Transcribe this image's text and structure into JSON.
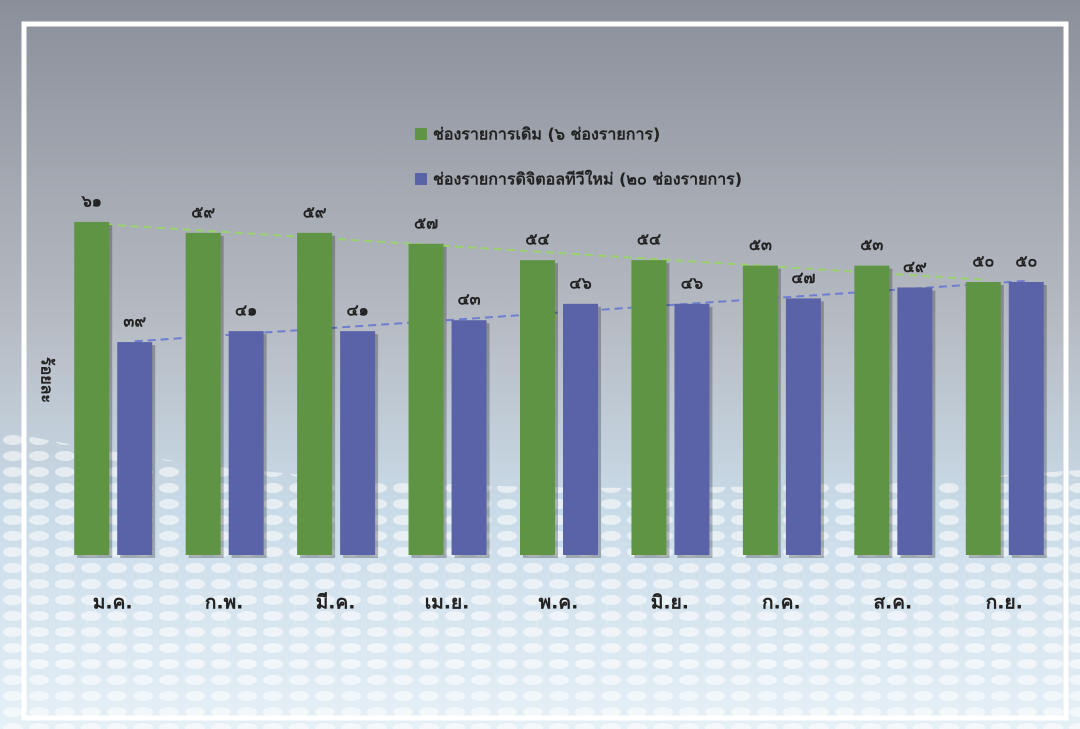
{
  "chart_data": {
    "type": "bar",
    "y_label": "ร้อยละ",
    "categories": [
      "ม.ค.",
      "ก.พ.",
      "มี.ค.",
      "เม.ย.",
      "พ.ค.",
      "มิ.ย.",
      "ก.ค.",
      "ส.ค.",
      "ก.ย."
    ],
    "series": [
      {
        "name": "ช่องรายการเดิม (๖ ช่องรายการ)",
        "color": "#5e9443",
        "values": [
          61,
          59,
          59,
          57,
          54,
          54,
          53,
          53,
          50
        ],
        "value_labels": [
          "๖๑",
          "๕๙",
          "๕๙",
          "๕๗",
          "๕๔",
          "๕๔",
          "๕๓",
          "๕๓",
          "๕๐"
        ]
      },
      {
        "name": "ช่องรายการดิจิตอลทีวีใหม่ (๒๐ ช่องรายการ)",
        "color": "#5b63a8",
        "values": [
          39,
          41,
          41,
          43,
          46,
          46,
          47,
          49,
          50
        ],
        "value_labels": [
          "๓๙",
          "๔๑",
          "๔๑",
          "๔๓",
          "๔๖",
          "๔๖",
          "๔๗",
          "๔๙",
          "๕๐"
        ]
      }
    ],
    "ylim": [
      0,
      100
    ],
    "trendline": true
  }
}
